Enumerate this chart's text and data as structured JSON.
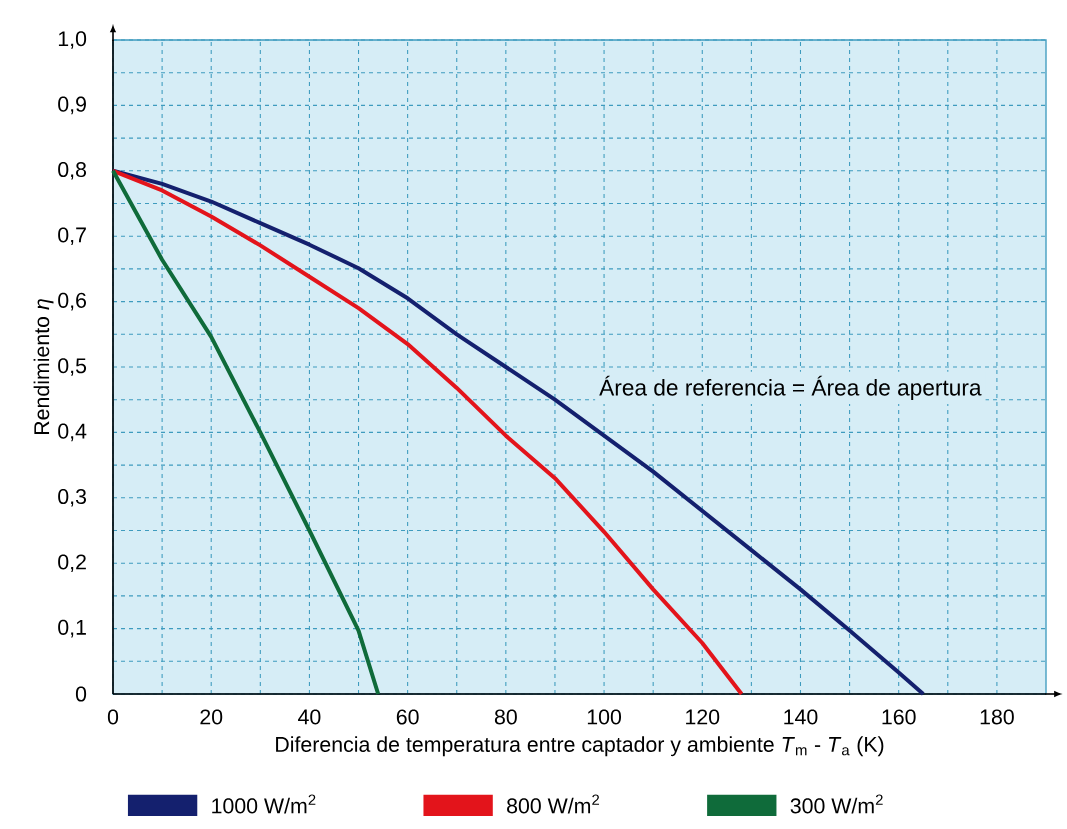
{
  "chart_data": {
    "type": "line",
    "xlabel": "Diferencia de temperatura entre captador y ambiente   *T*$_{m}$ - *T*$_{a}$  (K)",
    "ylabel": "Rendimiento *η*",
    "annotations": [
      "Área de referencia = Área de apertura"
    ],
    "series": [
      {
        "name": "1000 W/m$^{2}$",
        "color": "#14206e",
        "x": [
          0,
          10,
          20,
          30,
          40,
          50,
          60,
          70,
          80,
          90,
          100,
          110,
          120,
          130,
          140,
          150,
          160,
          165
        ],
        "values": [
          0.8,
          0.78,
          0.753,
          0.72,
          0.687,
          0.651,
          0.605,
          0.55,
          0.5,
          0.45,
          0.395,
          0.34,
          0.28,
          0.22,
          0.16,
          0.097,
          0.033,
          0
        ]
      },
      {
        "name": "800 W/m$^{2}$",
        "color": "#e3141b",
        "x": [
          0,
          10,
          20,
          30,
          40,
          50,
          60,
          70,
          80,
          90,
          100,
          110,
          120,
          128
        ],
        "values": [
          0.8,
          0.77,
          0.73,
          0.686,
          0.638,
          0.59,
          0.535,
          0.468,
          0.395,
          0.33,
          0.248,
          0.16,
          0.078,
          0
        ]
      },
      {
        "name": "300 W/m$^{2}$",
        "color": "#0f6b3a",
        "x": [
          0,
          10,
          20,
          30,
          40,
          50,
          54
        ],
        "values": [
          0.8,
          0.664,
          0.546,
          0.4,
          0.25,
          0.097,
          0
        ]
      }
    ],
    "xlim": [
      0,
      190
    ],
    "ylim": [
      0,
      1.0
    ],
    "xticks": [
      0,
      {
        "value": 10,
        "label": null
      },
      20,
      {
        "value": 30,
        "label": null
      },
      40,
      {
        "value": 50,
        "label": null
      },
      60,
      {
        "value": 70,
        "label": null
      },
      80,
      {
        "value": 90,
        "label": null
      },
      100,
      {
        "value": 110,
        "label": null
      },
      120,
      {
        "value": 130,
        "label": null
      },
      140,
      {
        "value": 150,
        "label": null
      },
      160,
      {
        "value": 170,
        "label": null
      },
      180
    ],
    "yticks": [
      0,
      {
        "value": 0.05,
        "label": null
      },
      {
        "value": 0.1,
        "label": "0,1"
      },
      {
        "value": 0.15,
        "label": null
      },
      {
        "value": 0.2,
        "label": "0,2"
      },
      {
        "value": 0.25,
        "label": null
      },
      {
        "value": 0.3,
        "label": "0,3"
      },
      {
        "value": 0.35,
        "label": null
      },
      {
        "value": 0.4,
        "label": "0,4"
      },
      {
        "value": 0.45,
        "label": null
      },
      {
        "value": 0.5,
        "label": "0,5"
      },
      {
        "value": 0.55,
        "label": null
      },
      {
        "value": 0.6,
        "label": "0,6"
      },
      {
        "value": 0.65,
        "label": null
      },
      {
        "value": 0.7,
        "label": "0,7"
      },
      {
        "value": 0.75,
        "label": null
      },
      {
        "value": 0.8,
        "label": "0,8"
      },
      {
        "value": 0.85,
        "label": null
      },
      {
        "value": 0.9,
        "label": "0,9"
      },
      {
        "value": 0.95,
        "label": null
      },
      {
        "value": 1.0,
        "label": "1,0"
      }
    ],
    "grid": true,
    "legend": "bottom",
    "line_style": "solid",
    "marker": "none"
  }
}
